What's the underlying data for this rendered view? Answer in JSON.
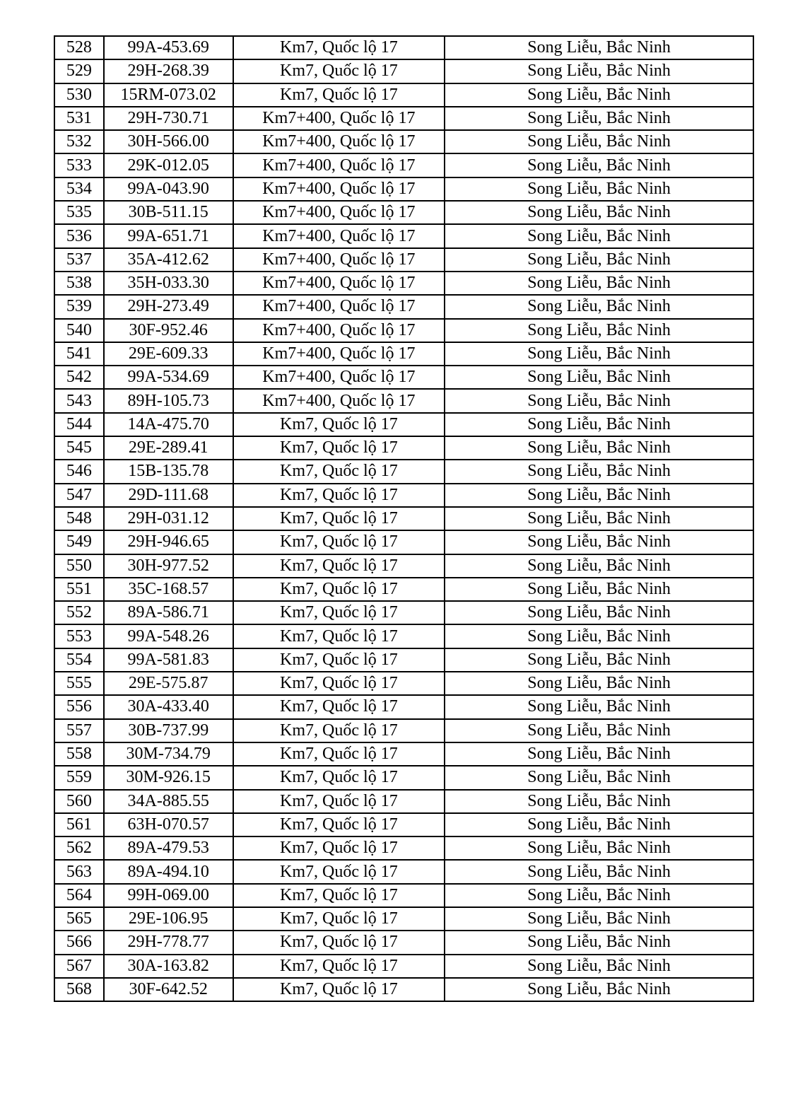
{
  "table": {
    "rows": [
      [
        "528",
        "99A-453.69",
        "Km7, Quốc lộ 17",
        "Song Liễu, Bắc Ninh"
      ],
      [
        "529",
        "29H-268.39",
        "Km7, Quốc lộ 17",
        "Song Liễu, Bắc Ninh"
      ],
      [
        "530",
        "15RM-073.02",
        "Km7, Quốc lộ 17",
        "Song Liễu, Bắc Ninh"
      ],
      [
        "531",
        "29H-730.71",
        "Km7+400, Quốc lộ 17",
        "Song Liễu, Bắc Ninh"
      ],
      [
        "532",
        "30H-566.00",
        "Km7+400, Quốc lộ 17",
        "Song Liễu, Bắc Ninh"
      ],
      [
        "533",
        "29K-012.05",
        "Km7+400, Quốc lộ 17",
        "Song Liễu, Bắc Ninh"
      ],
      [
        "534",
        "99A-043.90",
        "Km7+400, Quốc lộ 17",
        "Song Liễu, Bắc Ninh"
      ],
      [
        "535",
        "30B-511.15",
        "Km7+400, Quốc lộ 17",
        "Song Liễu, Bắc Ninh"
      ],
      [
        "536",
        "99A-651.71",
        "Km7+400, Quốc lộ 17",
        "Song Liễu, Bắc Ninh"
      ],
      [
        "537",
        "35A-412.62",
        "Km7+400, Quốc lộ 17",
        "Song Liễu, Bắc Ninh"
      ],
      [
        "538",
        "35H-033.30",
        "Km7+400, Quốc lộ 17",
        "Song Liễu, Bắc Ninh"
      ],
      [
        "539",
        "29H-273.49",
        "Km7+400, Quốc lộ 17",
        "Song Liễu, Bắc Ninh"
      ],
      [
        "540",
        "30F-952.46",
        "Km7+400, Quốc lộ 17",
        "Song Liễu, Bắc Ninh"
      ],
      [
        "541",
        "29E-609.33",
        "Km7+400, Quốc lộ 17",
        "Song Liễu, Bắc Ninh"
      ],
      [
        "542",
        "99A-534.69",
        "Km7+400, Quốc lộ 17",
        "Song Liễu, Bắc Ninh"
      ],
      [
        "543",
        "89H-105.73",
        "Km7+400, Quốc lộ 17",
        "Song Liễu, Bắc Ninh"
      ],
      [
        "544",
        "14A-475.70",
        "Km7, Quốc lộ 17",
        "Song Liễu, Bắc Ninh"
      ],
      [
        "545",
        "29E-289.41",
        "Km7, Quốc lộ 17",
        "Song Liễu, Bắc Ninh"
      ],
      [
        "546",
        "15B-135.78",
        "Km7, Quốc lộ 17",
        "Song Liễu, Bắc Ninh"
      ],
      [
        "547",
        "29D-111.68",
        "Km7, Quốc lộ 17",
        "Song Liễu, Bắc Ninh"
      ],
      [
        "548",
        "29H-031.12",
        "Km7, Quốc lộ 17",
        "Song Liễu, Bắc Ninh"
      ],
      [
        "549",
        "29H-946.65",
        "Km7, Quốc lộ 17",
        "Song Liễu, Bắc Ninh"
      ],
      [
        "550",
        "30H-977.52",
        "Km7, Quốc lộ 17",
        "Song Liễu, Bắc Ninh"
      ],
      [
        "551",
        "35C-168.57",
        "Km7, Quốc lộ 17",
        "Song Liễu, Bắc Ninh"
      ],
      [
        "552",
        "89A-586.71",
        "Km7, Quốc lộ 17",
        "Song Liễu, Bắc Ninh"
      ],
      [
        "553",
        "99A-548.26",
        "Km7, Quốc lộ 17",
        "Song Liễu, Bắc Ninh"
      ],
      [
        "554",
        "99A-581.83",
        "Km7, Quốc lộ 17",
        "Song Liễu, Bắc Ninh"
      ],
      [
        "555",
        "29E-575.87",
        "Km7, Quốc lộ 17",
        "Song Liễu, Bắc Ninh"
      ],
      [
        "556",
        "30A-433.40",
        "Km7, Quốc lộ 17",
        "Song Liễu, Bắc Ninh"
      ],
      [
        "557",
        "30B-737.99",
        "Km7, Quốc lộ 17",
        "Song Liễu, Bắc Ninh"
      ],
      [
        "558",
        "30M-734.79",
        "Km7, Quốc lộ 17",
        "Song Liễu, Bắc Ninh"
      ],
      [
        "559",
        "30M-926.15",
        "Km7, Quốc lộ 17",
        "Song Liễu, Bắc Ninh"
      ],
      [
        "560",
        "34A-885.55",
        "Km7, Quốc lộ 17",
        "Song Liễu, Bắc Ninh"
      ],
      [
        "561",
        "63H-070.57",
        "Km7, Quốc lộ 17",
        "Song Liễu, Bắc Ninh"
      ],
      [
        "562",
        "89A-479.53",
        "Km7, Quốc lộ 17",
        "Song Liễu, Bắc Ninh"
      ],
      [
        "563",
        "89A-494.10",
        "Km7, Quốc lộ 17",
        "Song Liễu, Bắc Ninh"
      ],
      [
        "564",
        "99H-069.00",
        "Km7, Quốc lộ 17",
        "Song Liễu, Bắc Ninh"
      ],
      [
        "565",
        "29E-106.95",
        "Km7, Quốc lộ 17",
        "Song Liễu, Bắc Ninh"
      ],
      [
        "566",
        "29H-778.77",
        "Km7, Quốc lộ 17",
        "Song Liễu, Bắc Ninh"
      ],
      [
        "567",
        "30A-163.82",
        "Km7, Quốc lộ 17",
        "Song Liễu, Bắc Ninh"
      ],
      [
        "568",
        "30F-642.52",
        "Km7, Quốc lộ 17",
        "Song Liễu, Bắc Ninh"
      ]
    ]
  }
}
